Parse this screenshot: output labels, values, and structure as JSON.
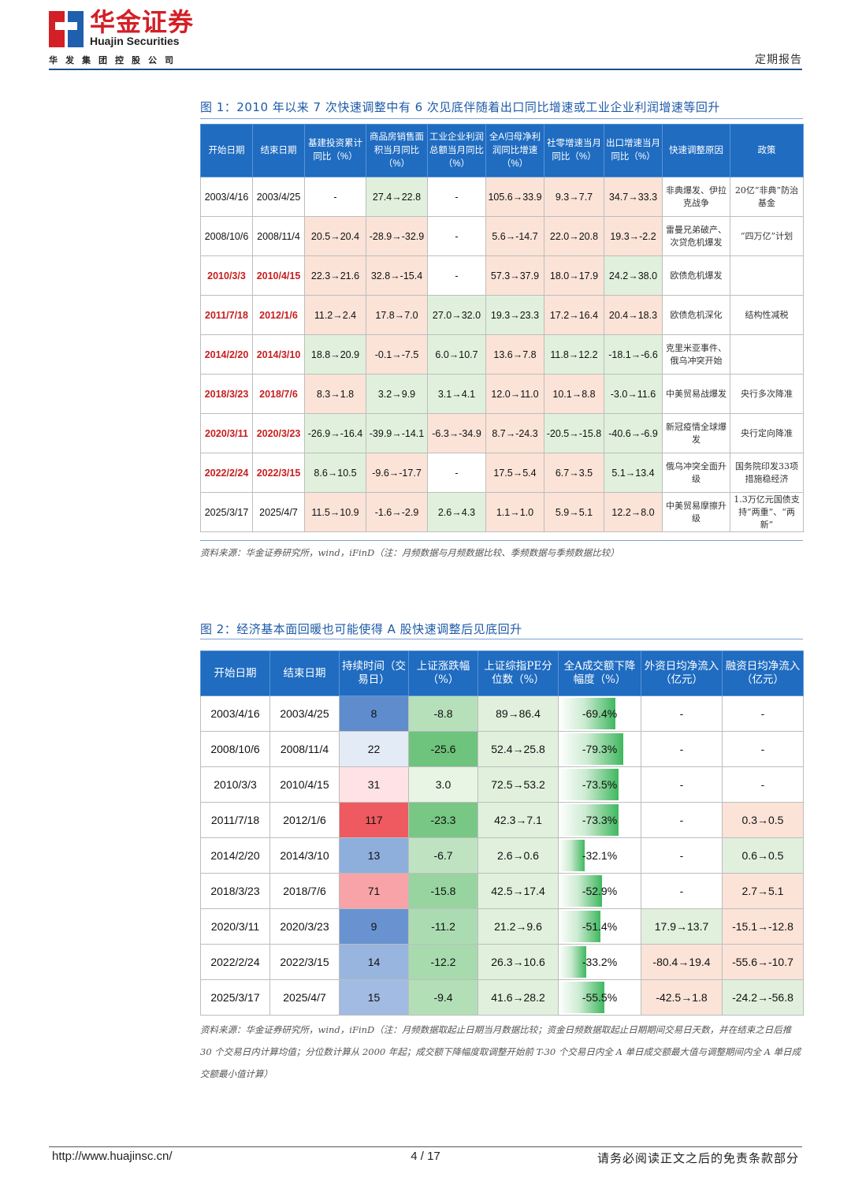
{
  "header": {
    "logo_cn": "华金证券",
    "logo_en": "Huajin Securities",
    "logo_sub": "华发集团控股公司",
    "report_type": "定期报告",
    "brand_color": "#d31f26"
  },
  "fig1": {
    "title": "图 1：2010 年以来 7 次快速调整中有 6 次见底伴随着出口同比增速或工业企业利润增速等回升",
    "headers": [
      "开始日期",
      "结束日期",
      "基建投资累计同比（%）",
      "商品房销售面积当月同比（%）",
      "工业企业利润总额当月同比（%）",
      "全A归母净利润同比增速（%）",
      "社零增速当月同比（%）",
      "出口增速当月同比（%）",
      "快速调整原因",
      "政策"
    ],
    "rows": [
      {
        "start": "2003/4/16",
        "end": "2003/4/25",
        "infra": "-",
        "housing": "27.4→22.8",
        "industry": "-",
        "profit": "105.6→33.9",
        "retail": "9.3→7.7",
        "export": "34.7→33.3",
        "reason": "非典爆发、伊拉克战争",
        "policy": "20亿“非典”防治基金"
      },
      {
        "start": "2008/10/6",
        "end": "2008/11/4",
        "infra": "20.5→20.4",
        "housing": "-28.9→-32.9",
        "industry": "-",
        "profit": "5.6→-14.7",
        "retail": "22.0→20.8",
        "export": "19.3→-2.2",
        "reason": "雷曼兄弟破产、次贷危机爆发",
        "policy": "“四万亿”计划"
      },
      {
        "start": "2010/3/3",
        "end": "2010/4/15",
        "infra": "22.3→21.6",
        "housing": "32.8→-15.4",
        "industry": "-",
        "profit": "57.3→37.9",
        "retail": "18.0→17.9",
        "export": "24.2→38.0",
        "reason": "欧债危机爆发",
        "policy": ""
      },
      {
        "start": "2011/7/18",
        "end": "2012/1/6",
        "infra": "11.2→2.4",
        "housing": "17.8→7.0",
        "industry": "27.0→32.0",
        "profit": "19.3→23.3",
        "retail": "17.2→16.4",
        "export": "20.4→18.3",
        "reason": "欧债危机深化",
        "policy": "结构性减税"
      },
      {
        "start": "2014/2/20",
        "end": "2014/3/10",
        "infra": "18.8→20.9",
        "housing": "-0.1→-7.5",
        "industry": "6.0→10.7",
        "profit": "13.6→7.8",
        "retail": "11.8→12.2",
        "export": "-18.1→-6.6",
        "reason": "克里米亚事件、俄乌冲突开始",
        "policy": ""
      },
      {
        "start": "2018/3/23",
        "end": "2018/7/6",
        "infra": "8.3→1.8",
        "housing": "3.2→9.9",
        "industry": "3.1→4.1",
        "profit": "12.0→11.0",
        "retail": "10.1→8.8",
        "export": "-3.0→11.6",
        "reason": "中美贸易战爆发",
        "policy": "央行多次降准"
      },
      {
        "start": "2020/3/11",
        "end": "2020/3/23",
        "infra": "-26.9→-16.4",
        "housing": "-39.9→-14.1",
        "industry": "-6.3→-34.9",
        "profit": "8.7→-24.3",
        "retail": "-20.5→-15.8",
        "export": "-40.6→-6.9",
        "reason": "新冠疫情全球爆发",
        "policy": "央行定向降准"
      },
      {
        "start": "2022/2/24",
        "end": "2022/3/15",
        "infra": "8.6→10.5",
        "housing": "-9.6→-17.7",
        "industry": "-",
        "profit": "17.5→5.4",
        "retail": "6.7→3.5",
        "export": "5.1→13.4",
        "reason": "俄乌冲突全面升级",
        "policy": "国务院印发33项措施稳经济"
      },
      {
        "start": "2025/3/17",
        "end": "2025/4/7",
        "infra": "11.5→10.9",
        "housing": "-1.6→-2.9",
        "industry": "2.6→4.3",
        "profit": "1.1→1.0",
        "retail": "5.9→5.1",
        "export": "12.2→8.0",
        "reason": "中美贸易摩擦升级",
        "policy": "1.3万亿元国债支持“两重”、“两新”"
      }
    ],
    "source": "资料来源：华金证券研究所，wind，iFinD（注：月频数据与月频数据比较、季频数据与季频数据比较）"
  },
  "fig2": {
    "title": "图 2：经济基本面回暖也可能使得 A 股快速调整后见底回升",
    "headers": [
      "开始日期",
      "结束日期",
      "持续时间（交易日）",
      "上证涨跌幅（%）",
      "上证综指PE分位数（%）",
      "全A成交额下降幅度（%）",
      "外资日均净流入（亿元）",
      "融资日均净流入（亿元）"
    ],
    "rows": [
      {
        "start": "2003/4/16",
        "end": "2003/4/25",
        "days": "8",
        "sh_change": "-8.8",
        "pe_pct": "89→86.4",
        "turnover_drop": "-69.4%",
        "turnover_value": 69.4,
        "foreign": "-",
        "margin": "-"
      },
      {
        "start": "2008/10/6",
        "end": "2008/11/4",
        "days": "22",
        "sh_change": "-25.6",
        "pe_pct": "52.4→25.8",
        "turnover_drop": "-79.3%",
        "turnover_value": 79.3,
        "foreign": "-",
        "margin": "-"
      },
      {
        "start": "2010/3/3",
        "end": "2010/4/15",
        "days": "31",
        "sh_change": "3.0",
        "pe_pct": "72.5→53.2",
        "turnover_drop": "-73.5%",
        "turnover_value": 73.5,
        "foreign": "-",
        "margin": "-"
      },
      {
        "start": "2011/7/18",
        "end": "2012/1/6",
        "days": "117",
        "sh_change": "-23.3",
        "pe_pct": "42.3→7.1",
        "turnover_drop": "-73.3%",
        "turnover_value": 73.3,
        "foreign": "-",
        "margin": "0.3→0.5"
      },
      {
        "start": "2014/2/20",
        "end": "2014/3/10",
        "days": "13",
        "sh_change": "-6.7",
        "pe_pct": "2.6→0.6",
        "turnover_drop": "-32.1%",
        "turnover_value": 32.1,
        "foreign": "-",
        "margin": "0.6→0.5"
      },
      {
        "start": "2018/3/23",
        "end": "2018/7/6",
        "days": "71",
        "sh_change": "-15.8",
        "pe_pct": "42.5→17.4",
        "turnover_drop": "-52.9%",
        "turnover_value": 52.9,
        "foreign": "-",
        "margin": "2.7→5.1"
      },
      {
        "start": "2020/3/11",
        "end": "2020/3/23",
        "days": "9",
        "sh_change": "-11.2",
        "pe_pct": "21.2→9.6",
        "turnover_drop": "-51.4%",
        "turnover_value": 51.4,
        "foreign": "17.9→13.7",
        "margin": "-15.1→-12.8"
      },
      {
        "start": "2022/2/24",
        "end": "2022/3/15",
        "days": "14",
        "sh_change": "-12.2",
        "pe_pct": "26.3→10.6",
        "turnover_drop": "-33.2%",
        "turnover_value": 33.2,
        "foreign": "-80.4→19.4",
        "margin": "-55.6→-10.7"
      },
      {
        "start": "2025/3/17",
        "end": "2025/4/7",
        "days": "15",
        "sh_change": "-9.4",
        "pe_pct": "41.6→28.2",
        "turnover_drop": "-55.5%",
        "turnover_value": 55.5,
        "foreign": "-42.5→1.8",
        "margin": "-24.2→-56.8"
      }
    ],
    "source": "资料来源：华金证券研究所，wind，iFinD（注：月频数据取起止日期当月数据比较；资金日频数据取起止日期期间交易日天数，并在结束之日后推 30 个交易日内计算均值；分位数计算从 2000 年起；成交额下降幅度取调整开始前 T-30 个交易日内全 A 单日成交额最大值与调整期间内全 A 单日成交额最小值计算）"
  },
  "footer": {
    "url": "http://www.huajinsc.cn/",
    "page": "4 / 17",
    "disclaimer": "请务必阅读正文之后的免责条款部分"
  }
}
